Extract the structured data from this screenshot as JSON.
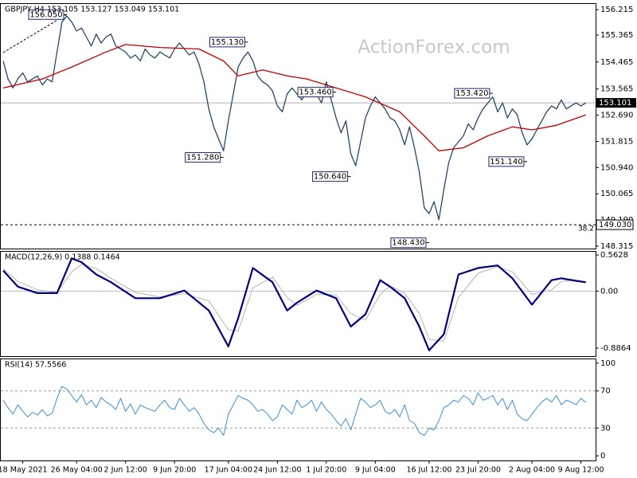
{
  "chart_data": [
    {
      "type": "line",
      "title": "GBPJPY,H4  153.105 153.127 153.049 153.101",
      "watermark": "ActionForex.com",
      "xlim": [
        -0.65,
        121
      ],
      "ylim": [
        148.235,
        156.43
      ],
      "yticks": [
        156.215,
        155.365,
        154.465,
        153.565,
        {
          "value": 152.69,
          "label": "152.690"
        },
        151.815,
        {
          "value": 150.94,
          "label": "150.940"
        },
        150.065,
        {
          "value": 149.19,
          "label": "149.190"
        },
        148.315
      ],
      "series": [
        {
          "color": "#24476b",
          "values": [
            154.5,
            153.9,
            153.6,
            153.9,
            154.1,
            153.8,
            153.9,
            154.0,
            153.7,
            153.9,
            153.8,
            154.8,
            155.8,
            156.0,
            155.8,
            155.5,
            155.6,
            155.3,
            155.0,
            155.4,
            155.1,
            155.3,
            155.4,
            155.0,
            154.9,
            154.8,
            154.6,
            154.7,
            154.5,
            154.9,
            154.7,
            154.6,
            154.8,
            154.7,
            154.6,
            154.9,
            155.1,
            154.9,
            154.7,
            154.8,
            154.4,
            153.8,
            152.9,
            152.3,
            151.9,
            151.5,
            152.5,
            153.4,
            154.3,
            154.6,
            154.8,
            154.5,
            154.0,
            153.8,
            153.7,
            153.5,
            153.0,
            152.8,
            153.4,
            153.6,
            153.4,
            153.2,
            153.5,
            153.6,
            153.4,
            153.1,
            153.8,
            153.2,
            152.6,
            152.1,
            152.5,
            151.4,
            151.0,
            151.8,
            152.6,
            153.0,
            153.3,
            153.1,
            152.9,
            152.6,
            152.5,
            152.2,
            151.7,
            152.3,
            151.6,
            150.8,
            149.6,
            149.4,
            149.8,
            149.2,
            150.2,
            151.1,
            151.6,
            151.8,
            152.0,
            152.4,
            152.2,
            152.6,
            152.9,
            153.1,
            153.3,
            152.8,
            153.1,
            152.6,
            152.9,
            152.7,
            152.1,
            151.7,
            151.9,
            152.2,
            152.5,
            152.8,
            153.0,
            152.9,
            153.2,
            152.9,
            153.0,
            153.1,
            153.0,
            153.1
          ]
        },
        {
          "color": "#c00000",
          "x": [
            0,
            8,
            14,
            21,
            25,
            32,
            40,
            45,
            48,
            53,
            58,
            62,
            68,
            74,
            81,
            86,
            89,
            94,
            99,
            104,
            108,
            113,
            119
          ],
          "values": [
            153.6,
            153.9,
            154.3,
            154.8,
            155.05,
            154.95,
            154.9,
            154.5,
            154.0,
            154.2,
            154.0,
            153.9,
            153.6,
            153.3,
            152.8,
            152.0,
            151.5,
            151.6,
            152.0,
            152.3,
            152.2,
            152.35,
            152.7
          ]
        }
      ],
      "last_price": 153.101,
      "fib_line": {
        "value": 149.03,
        "price_label": "149.030",
        "ratio": "38.2"
      },
      "annotations": [
        {
          "value": 156.05,
          "label": "156.050",
          "x": 13
        },
        {
          "value": 155.13,
          "label": "155.130",
          "x": 50
        },
        {
          "value": 151.28,
          "label": "151.280",
          "x": 45
        },
        {
          "value": 150.64,
          "label": "150.640",
          "x": 71
        },
        {
          "value": 153.46,
          "label": "153.460",
          "x": 68
        },
        {
          "value": 148.43,
          "label": "148.430",
          "x": 87
        },
        {
          "value": 153.42,
          "label": "153.420",
          "x": 100
        },
        {
          "value": 151.14,
          "label": "151.140",
          "x": 107
        }
      ]
    },
    {
      "type": "line",
      "title": "MACD(12,26,9) 0.1388 0.1464",
      "xlim": [
        -0.65,
        121
      ],
      "ylim": [
        -1.01,
        0.625
      ],
      "yticks": [
        0.5628,
        {
          "value": 0,
          "label": "0.00"
        },
        -0.8864
      ],
      "levels": [
        0
      ],
      "series": [
        {
          "color": "#b4b4b4",
          "width": 1,
          "x": [
            0,
            3,
            7,
            11,
            14,
            16,
            19,
            22,
            27,
            32,
            37,
            42,
            46,
            48,
            51,
            55,
            58,
            60,
            64,
            68,
            71,
            74,
            77,
            79,
            82,
            85,
            87,
            90,
            93,
            97,
            101,
            104,
            108,
            112,
            114,
            117,
            119
          ],
          "values": [
            0.35,
            0.15,
            0.02,
            -0.02,
            0.3,
            0.42,
            0.35,
            0.2,
            -0.02,
            -0.09,
            -0.04,
            -0.15,
            -0.6,
            -0.62,
            0.05,
            0.22,
            -0.1,
            -0.22,
            -0.05,
            -0.06,
            -0.35,
            -0.45,
            -0.05,
            0.08,
            -0.03,
            -0.35,
            -0.75,
            -0.78,
            -0.1,
            0.28,
            0.38,
            0.3,
            -0.05,
            0.02,
            0.15,
            0.17,
            0.1464
          ]
        },
        {
          "color": "#000080",
          "width": 2.2,
          "x": [
            0,
            3,
            7,
            11,
            14,
            16,
            19,
            22,
            27,
            32,
            37,
            42,
            46,
            48,
            51,
            55,
            58,
            60,
            64,
            68,
            71,
            74,
            77,
            79,
            82,
            85,
            87,
            90,
            93,
            97,
            101,
            104,
            108,
            112,
            114,
            117,
            119
          ],
          "values": [
            0.32,
            0.07,
            -0.03,
            -0.03,
            0.51,
            0.45,
            0.26,
            0.14,
            -0.11,
            -0.11,
            0.01,
            -0.3,
            -0.86,
            -0.42,
            0.36,
            0.14,
            -0.3,
            -0.18,
            0.01,
            -0.11,
            -0.55,
            -0.36,
            0.17,
            0.07,
            -0.11,
            -0.55,
            -0.92,
            -0.67,
            0.26,
            0.36,
            0.4,
            0.2,
            -0.21,
            0.17,
            0.2,
            0.16,
            0.1388
          ]
        }
      ]
    },
    {
      "type": "line",
      "title": "RSI(14) 57.5566",
      "xlim": [
        -0.65,
        121
      ],
      "ylim": [
        -5,
        105
      ],
      "yticks": [
        100,
        70,
        30,
        0
      ],
      "levels": [
        70,
        30
      ],
      "series": [
        {
          "color": "#3a8fd8",
          "width": 1,
          "values": [
            60,
            52,
            45,
            55,
            48,
            42,
            47,
            44,
            50,
            43,
            46,
            62,
            75,
            72,
            65,
            58,
            66,
            55,
            60,
            52,
            63,
            58,
            55,
            50,
            62,
            48,
            56,
            45,
            55,
            52,
            50,
            48,
            55,
            60,
            52,
            50,
            62,
            55,
            48,
            52,
            45,
            35,
            28,
            25,
            30,
            22,
            45,
            55,
            65,
            62,
            60,
            55,
            48,
            50,
            45,
            38,
            42,
            55,
            50,
            45,
            60,
            52,
            55,
            60,
            48,
            58,
            50,
            45,
            38,
            32,
            40,
            28,
            45,
            62,
            58,
            52,
            55,
            60,
            48,
            45,
            50,
            42,
            55,
            38,
            35,
            25,
            22,
            30,
            28,
            38,
            52,
            55,
            60,
            58,
            65,
            62,
            55,
            68,
            60,
            62,
            65,
            55,
            62,
            50,
            60,
            45,
            40,
            38,
            45,
            52,
            58,
            62,
            58,
            65,
            55,
            60,
            58,
            55,
            62,
            57.5566
          ]
        }
      ],
      "xticks": [
        {
          "value": 4,
          "label": "18 May 2021"
        },
        {
          "value": 15,
          "label": "26 May 04:00"
        },
        {
          "value": 25,
          "label": "2 Jun 12:00"
        },
        {
          "value": 35,
          "label": "9 Jun 20:00"
        },
        {
          "value": 46,
          "label": "17 Jun 04:00"
        },
        {
          "value": 56,
          "label": "24 Jun 12:00"
        },
        {
          "value": 66,
          "label": "1 Jul 20:00"
        },
        {
          "value": 76,
          "label": "9 Jul 04:00"
        },
        {
          "value": 87,
          "label": "16 Jul 12:00"
        },
        {
          "value": 97,
          "label": "23 Jul 20:00"
        },
        {
          "value": 108,
          "label": "2 Aug 04:00"
        },
        {
          "value": 118,
          "label": "9 Aug 12:00"
        }
      ]
    }
  ]
}
